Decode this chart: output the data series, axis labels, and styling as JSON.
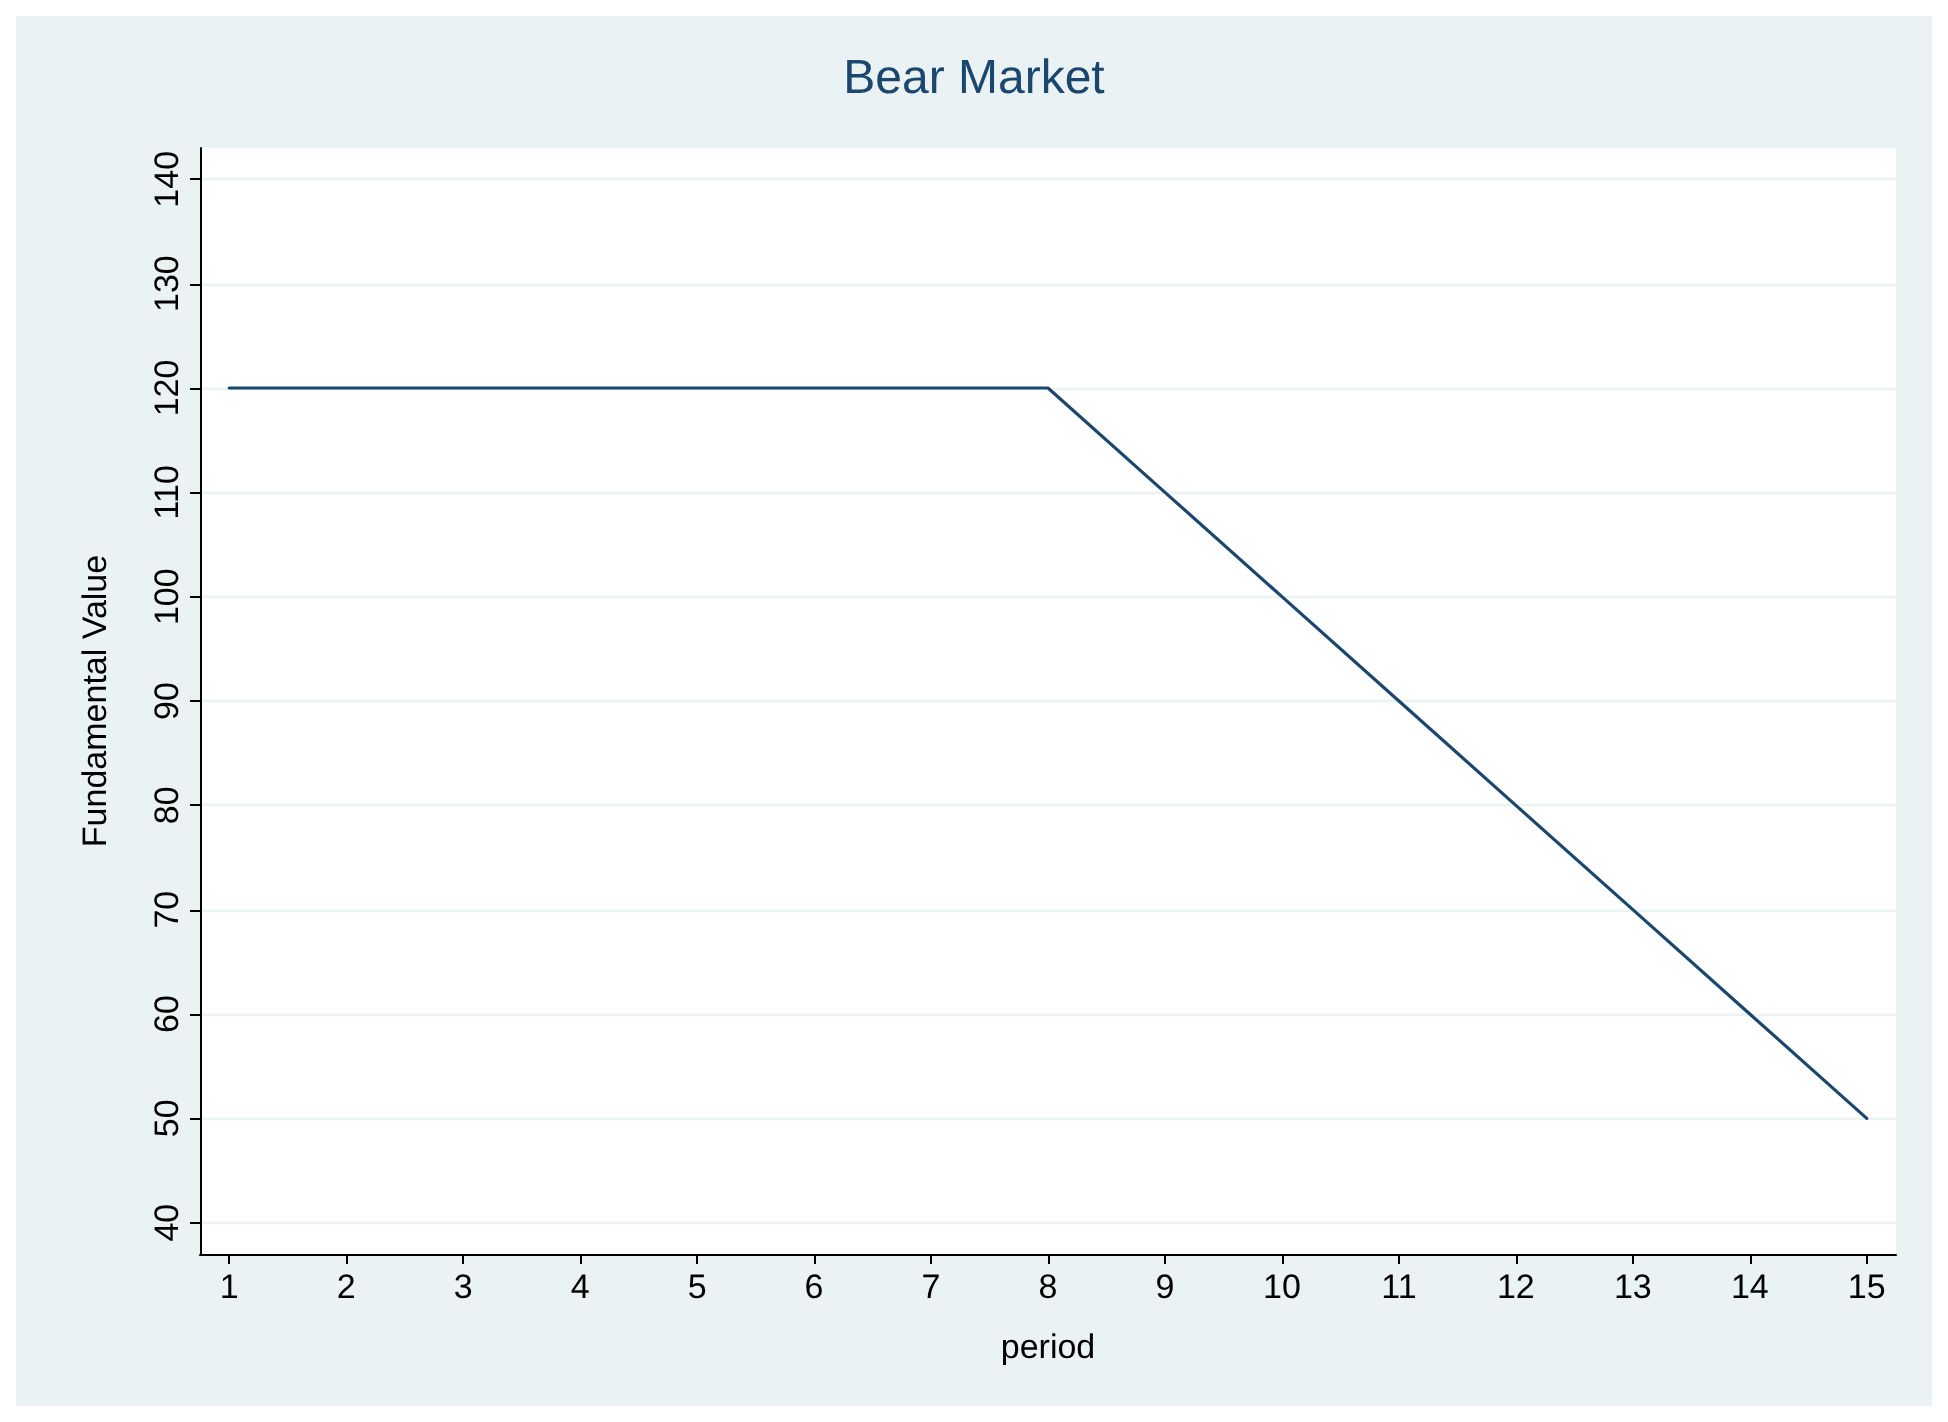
{
  "chart_data": {
    "type": "line",
    "title": "Bear Market",
    "xlabel": "period",
    "ylabel": "Fundamental Value",
    "x": [
      1,
      2,
      3,
      4,
      5,
      6,
      7,
      8,
      9,
      10,
      11,
      12,
      13,
      14,
      15
    ],
    "series": [
      {
        "color": "#1a476f",
        "values": [
          120,
          120,
          120,
          120,
          120,
          120,
          120,
          120,
          110,
          100,
          90,
          80,
          70,
          60,
          50
        ]
      }
    ],
    "xlim": [
      0.75,
      15.25
    ],
    "xticks": [
      1,
      2,
      3,
      4,
      5,
      6,
      7,
      8,
      9,
      10,
      11,
      12,
      13,
      14,
      15
    ],
    "ylim": [
      37,
      143
    ],
    "yticks": [
      40,
      50,
      60,
      70,
      80,
      90,
      100,
      110,
      120,
      130,
      140
    ],
    "grid": "y",
    "marker": "none",
    "line_style": "solid"
  }
}
